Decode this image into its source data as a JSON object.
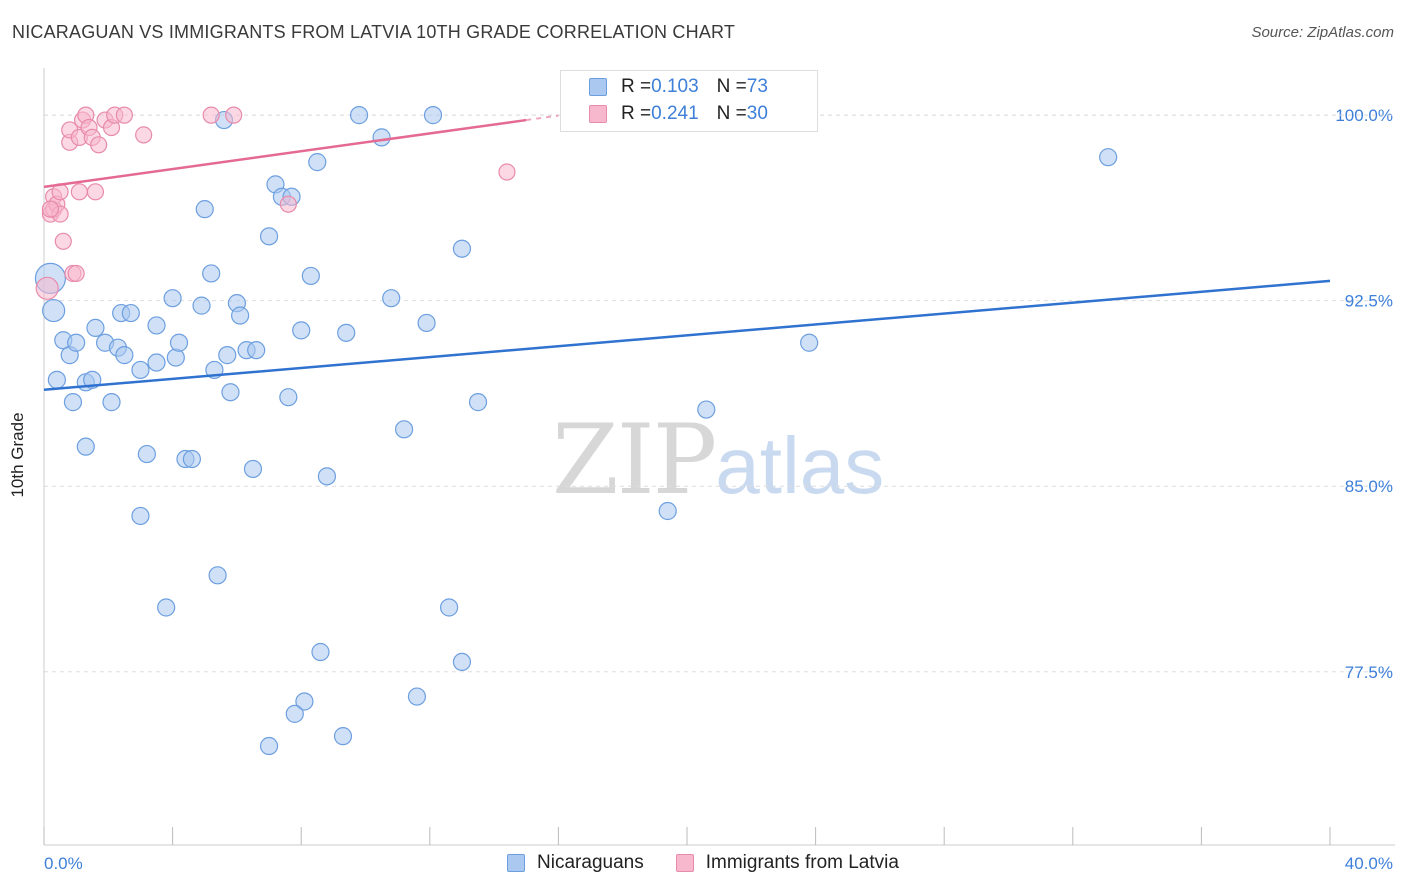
{
  "title": "NICARAGUAN VS IMMIGRANTS FROM LATVIA 10TH GRADE CORRELATION CHART",
  "source": "Source: ZipAtlas.com",
  "watermark": {
    "zip": "ZIP",
    "atlas": "atlas"
  },
  "legend": {
    "rows": [
      {
        "r_label": "R = ",
        "r_value": "0.103",
        "n_label": "N = ",
        "n_value": "73"
      },
      {
        "r_label": "R = ",
        "r_value": "0.241",
        "n_label": "N = ",
        "n_value": "30"
      }
    ]
  },
  "colors": {
    "blue_fill": "#aac8f0",
    "blue_stroke": "#6d9fe0",
    "blue_line": "#2f72d0",
    "pink_fill": "#f7b8cd",
    "pink_stroke": "#e88aab",
    "pink_line": "#e46a93",
    "axis_text": "#3d7fd9",
    "grid": "#dddddd"
  },
  "chart_data": {
    "type": "scatter",
    "title": "NICARAGUAN VS IMMIGRANTS FROM LATVIA 10TH GRADE CORRELATION CHART",
    "xlabel": "",
    "ylabel": "10th Grade",
    "xlim": [
      0,
      40
    ],
    "ylim": [
      70.5,
      101.5
    ],
    "x_tick_labels": [
      "0.0%",
      "40.0%"
    ],
    "y_ticks": [
      77.5,
      85.0,
      92.5,
      100.0
    ],
    "y_tick_labels": [
      "77.5%",
      "85.0%",
      "92.5%",
      "100.0%"
    ],
    "series": [
      {
        "name": "Nicaraguans",
        "r": 0.103,
        "n": 73,
        "trend": {
          "x": [
            0,
            40
          ],
          "y": [
            88.9,
            93.3
          ]
        },
        "points": [
          [
            0.2,
            93.4
          ],
          [
            0.3,
            92.1
          ],
          [
            0.4,
            89.3
          ],
          [
            0.6,
            90.9
          ],
          [
            0.8,
            90.3
          ],
          [
            1.0,
            90.8
          ],
          [
            0.9,
            88.4
          ],
          [
            1.3,
            89.2
          ],
          [
            1.5,
            89.3
          ],
          [
            1.6,
            91.4
          ],
          [
            1.9,
            90.8
          ],
          [
            2.1,
            88.4
          ],
          [
            2.3,
            90.6
          ],
          [
            2.5,
            90.3
          ],
          [
            2.4,
            92.0
          ],
          [
            2.7,
            92.0
          ],
          [
            1.3,
            86.6
          ],
          [
            3.2,
            86.3
          ],
          [
            3.0,
            89.7
          ],
          [
            3.5,
            91.5
          ],
          [
            3.5,
            90.0
          ],
          [
            4.0,
            92.6
          ],
          [
            4.1,
            90.2
          ],
          [
            4.2,
            90.8
          ],
          [
            4.4,
            86.1
          ],
          [
            4.6,
            86.1
          ],
          [
            4.9,
            92.3
          ],
          [
            5.0,
            96.2
          ],
          [
            5.2,
            93.6
          ],
          [
            5.3,
            89.7
          ],
          [
            5.7,
            90.3
          ],
          [
            5.8,
            88.8
          ],
          [
            6.0,
            92.4
          ],
          [
            6.1,
            91.9
          ],
          [
            6.3,
            90.5
          ],
          [
            6.6,
            90.5
          ],
          [
            7.0,
            95.1
          ],
          [
            7.2,
            97.2
          ],
          [
            7.4,
            96.7
          ],
          [
            7.7,
            96.7
          ],
          [
            7.6,
            88.6
          ],
          [
            8.0,
            91.3
          ],
          [
            8.3,
            93.5
          ],
          [
            8.5,
            98.1
          ],
          [
            8.8,
            85.4
          ],
          [
            9.4,
            91.2
          ],
          [
            9.8,
            100.0
          ],
          [
            10.5,
            99.1
          ],
          [
            10.8,
            92.6
          ],
          [
            11.2,
            87.3
          ],
          [
            11.9,
            91.6
          ],
          [
            12.1,
            100.0
          ],
          [
            13.0,
            94.6
          ],
          [
            13.5,
            88.4
          ],
          [
            16.9,
            100.0
          ],
          [
            18.6,
            100.0
          ],
          [
            5.6,
            99.8
          ],
          [
            3.0,
            83.8
          ],
          [
            5.4,
            81.4
          ],
          [
            3.8,
            80.1
          ],
          [
            6.5,
            85.7
          ],
          [
            8.6,
            78.3
          ],
          [
            12.6,
            80.1
          ],
          [
            13.0,
            77.9
          ],
          [
            11.6,
            76.5
          ],
          [
            8.1,
            76.3
          ],
          [
            7.8,
            75.8
          ],
          [
            9.3,
            74.9
          ],
          [
            7.0,
            74.5
          ],
          [
            19.4,
            84.0
          ],
          [
            20.6,
            88.1
          ],
          [
            23.8,
            90.8
          ],
          [
            33.1,
            98.3
          ]
        ]
      },
      {
        "name": "Immigrants from Latvia",
        "r": 0.241,
        "n": 30,
        "trend": {
          "x": [
            0,
            15
          ],
          "y": [
            97.1,
            99.8
          ]
        },
        "points": [
          [
            0.1,
            93.0
          ],
          [
            0.2,
            96.0
          ],
          [
            0.3,
            96.2
          ],
          [
            0.3,
            96.7
          ],
          [
            0.4,
            96.4
          ],
          [
            0.5,
            96.9
          ],
          [
            0.5,
            96.0
          ],
          [
            0.6,
            94.9
          ],
          [
            0.8,
            98.9
          ],
          [
            0.8,
            99.4
          ],
          [
            0.9,
            93.6
          ],
          [
            1.0,
            93.6
          ],
          [
            1.1,
            99.1
          ],
          [
            1.1,
            96.9
          ],
          [
            1.2,
            99.8
          ],
          [
            1.3,
            100.0
          ],
          [
            1.4,
            99.5
          ],
          [
            1.5,
            99.1
          ],
          [
            1.6,
            96.9
          ],
          [
            1.7,
            98.8
          ],
          [
            1.9,
            99.8
          ],
          [
            2.1,
            99.5
          ],
          [
            2.2,
            100.0
          ],
          [
            2.5,
            100.0
          ],
          [
            3.1,
            99.2
          ],
          [
            5.2,
            100.0
          ],
          [
            5.9,
            100.0
          ],
          [
            7.6,
            96.4
          ],
          [
            14.4,
            97.7
          ],
          [
            0.2,
            96.2
          ]
        ]
      }
    ]
  },
  "bottom_legend": [
    "Nicaraguans",
    "Immigrants from Latvia"
  ]
}
